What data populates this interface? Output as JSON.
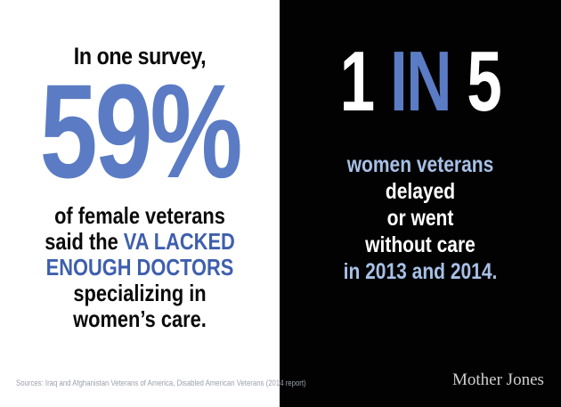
{
  "left_panel": {
    "intro": "In one survey,",
    "stat": "59%",
    "desc_line1": "of female veterans",
    "desc_line2_a": "said the ",
    "desc_line2_b": "VA LACKED",
    "desc_line3": "ENOUGH DOCTORS",
    "desc_line4": "specializing in",
    "desc_line5": "women’s care."
  },
  "right_panel": {
    "ratio_a": "1 ",
    "ratio_b": "IN",
    "ratio_c": " 5",
    "line1": "women veterans",
    "line2": "delayed",
    "line3": "or went",
    "line4": "without care",
    "line5": "in 2013 and 2014."
  },
  "footer": {
    "sources": "Sources: Iraq and Afghanistan Veterans of America, Disabled American Veterans (2014 report)",
    "logo": "Mother Jones"
  },
  "colors": {
    "accent_blue": "#5b7cc4",
    "dark_blue": "#3e5fad",
    "light_blue": "#a7c0e6",
    "background_dark": "#020202"
  }
}
